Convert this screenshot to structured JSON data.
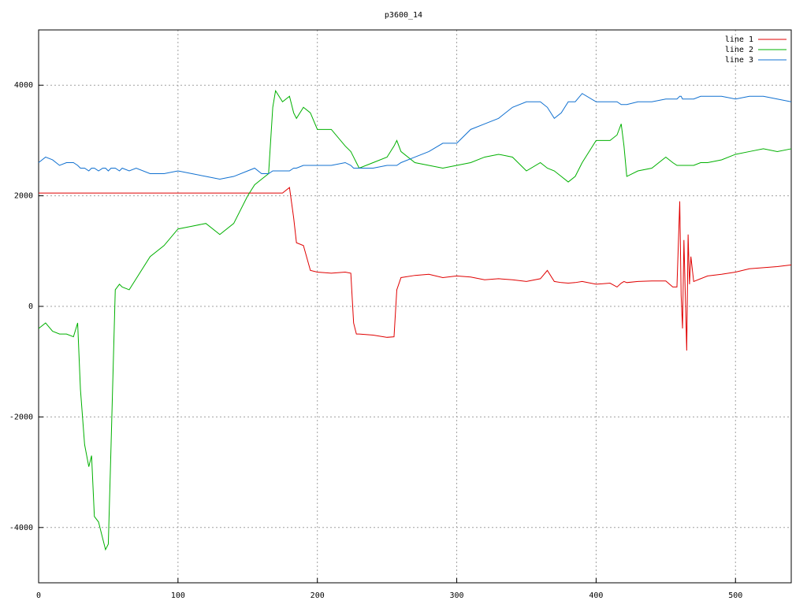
{
  "chart_data": {
    "type": "line",
    "title": "p3600_14",
    "x": [
      0,
      5,
      10,
      15,
      20,
      25,
      28,
      30,
      33,
      36,
      38,
      40,
      43,
      46,
      48,
      50,
      52,
      55,
      58,
      60,
      65,
      70,
      80,
      90,
      100,
      110,
      120,
      130,
      140,
      150,
      155,
      160,
      165,
      168,
      170,
      175,
      180,
      183,
      185,
      190,
      195,
      200,
      210,
      220,
      224,
      226,
      228,
      230,
      240,
      250,
      255,
      257,
      260,
      270,
      280,
      290,
      300,
      310,
      320,
      330,
      340,
      350,
      360,
      365,
      370,
      375,
      380,
      385,
      390,
      400,
      410,
      415,
      418,
      420,
      422,
      430,
      440,
      450,
      455,
      458,
      460,
      461,
      462,
      463,
      464,
      465,
      466,
      467,
      468,
      470,
      475,
      480,
      490,
      500,
      510,
      520,
      530,
      540
    ],
    "series": [
      {
        "name": "line 1",
        "color": "#e00000",
        "values": [
          2050,
          2050,
          2050,
          2050,
          2050,
          2050,
          2050,
          2050,
          2050,
          2050,
          2050,
          2050,
          2050,
          2050,
          2050,
          2050,
          2050,
          2050,
          2050,
          2050,
          2050,
          2050,
          2050,
          2050,
          2050,
          2050,
          2050,
          2050,
          2050,
          2050,
          2050,
          2050,
          2050,
          2050,
          2050,
          2050,
          2150,
          1600,
          1150,
          1100,
          650,
          620,
          600,
          620,
          600,
          -300,
          -500,
          -500,
          -520,
          -560,
          -550,
          300,
          520,
          560,
          580,
          520,
          550,
          530,
          480,
          500,
          480,
          450,
          500,
          650,
          450,
          430,
          420,
          430,
          450,
          400,
          420,
          350,
          420,
          450,
          430,
          450,
          460,
          460,
          350,
          350,
          1900,
          200,
          -400,
          1200,
          200,
          -800,
          1300,
          400,
          900,
          450,
          500,
          550,
          580,
          620,
          680,
          700,
          720,
          750
        ]
      },
      {
        "name": "line 2",
        "color": "#00b000",
        "values": [
          -400,
          -300,
          -450,
          -500,
          -500,
          -550,
          -300,
          -1500,
          -2500,
          -2900,
          -2700,
          -3800,
          -3900,
          -4200,
          -4400,
          -4300,
          -2500,
          300,
          400,
          350,
          300,
          500,
          900,
          1100,
          1400,
          1450,
          1500,
          1300,
          1500,
          2000,
          2200,
          2300,
          2400,
          3600,
          3900,
          3700,
          3800,
          3500,
          3400,
          3600,
          3500,
          3200,
          3200,
          2900,
          2800,
          2700,
          2600,
          2500,
          2600,
          2700,
          2900,
          3000,
          2800,
          2600,
          2550,
          2500,
          2550,
          2600,
          2700,
          2750,
          2700,
          2450,
          2600,
          2500,
          2450,
          2350,
          2250,
          2350,
          2600,
          3000,
          3000,
          3100,
          3300,
          2900,
          2350,
          2450,
          2500,
          2700,
          2600,
          2550,
          2550,
          2550,
          2550,
          2550,
          2550,
          2550,
          2550,
          2550,
          2550,
          2550,
          2600,
          2600,
          2650,
          2750,
          2800,
          2850,
          2800,
          2850
        ]
      },
      {
        "name": "line 3",
        "color": "#1070d0",
        "values": [
          2600,
          2700,
          2650,
          2550,
          2600,
          2600,
          2550,
          2500,
          2500,
          2450,
          2500,
          2500,
          2450,
          2500,
          2500,
          2450,
          2500,
          2500,
          2450,
          2500,
          2450,
          2500,
          2400,
          2400,
          2450,
          2400,
          2350,
          2300,
          2350,
          2450,
          2500,
          2400,
          2400,
          2450,
          2450,
          2450,
          2450,
          2500,
          2500,
          2550,
          2550,
          2550,
          2550,
          2600,
          2550,
          2500,
          2500,
          2500,
          2500,
          2550,
          2550,
          2550,
          2600,
          2700,
          2800,
          2950,
          2950,
          3200,
          3300,
          3400,
          3600,
          3700,
          3700,
          3600,
          3400,
          3500,
          3700,
          3700,
          3850,
          3700,
          3700,
          3700,
          3650,
          3650,
          3650,
          3700,
          3700,
          3750,
          3750,
          3750,
          3800,
          3800,
          3750,
          3750,
          3750,
          3750,
          3750,
          3750,
          3750,
          3750,
          3800,
          3800,
          3800,
          3750,
          3800,
          3800,
          3750,
          3700
        ]
      }
    ],
    "xlim": [
      0,
      540
    ],
    "xticks": [
      0,
      100,
      200,
      300,
      400,
      500
    ],
    "ylim": [
      -5000,
      5000
    ],
    "yticks": [
      -4000,
      -2000,
      0,
      2000,
      4000
    ],
    "grid": true,
    "legend": "top-right"
  }
}
